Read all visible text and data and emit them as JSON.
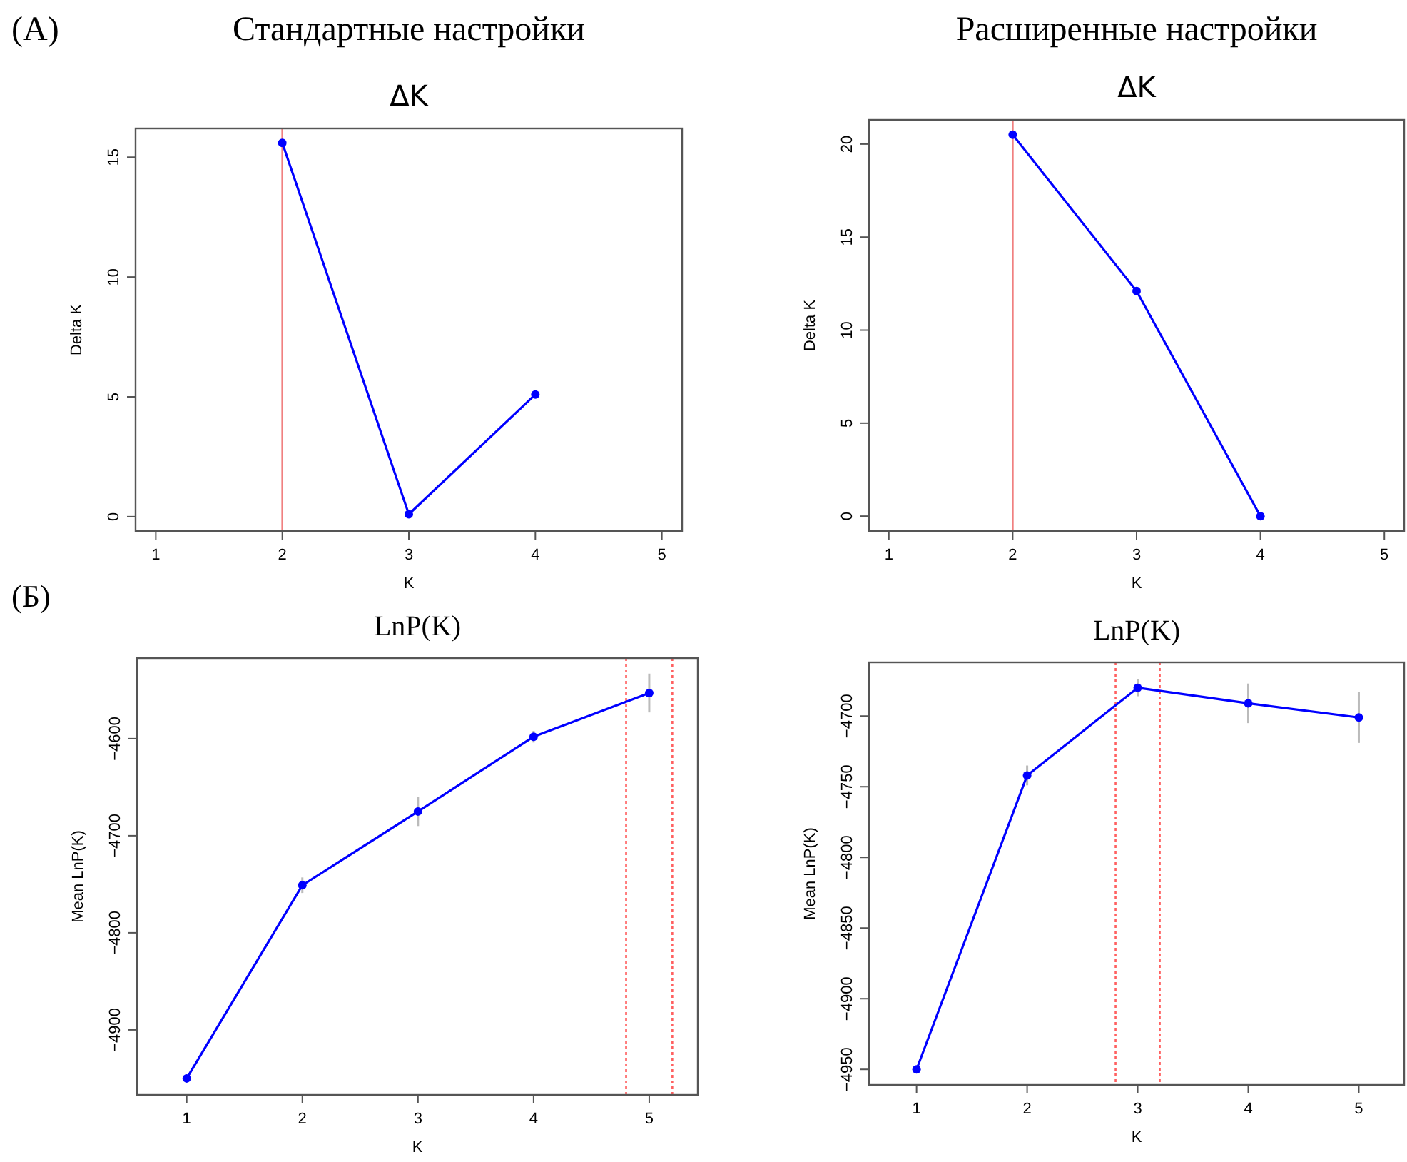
{
  "chart_data": [
    {
      "type": "line",
      "title": "ΔK",
      "annotations": [
        "(А)",
        "Стандартные настройки"
      ],
      "xlabel": "K",
      "ylabel": "Delta K",
      "x": [
        2,
        3,
        4
      ],
      "values": [
        15.6,
        0.1,
        5.1
      ],
      "color": "#0000ff",
      "marker": "circle",
      "xlim": [
        0.84,
        5.16
      ],
      "xticks": [
        1,
        2,
        3,
        4,
        5
      ],
      "ylim": [
        -0.6,
        16.2
      ],
      "yticks": [
        0,
        5,
        10,
        15
      ],
      "ref_lines": [
        {
          "axis": "x",
          "value": 2,
          "color": "#f08080",
          "line_style": "solid"
        }
      ]
    },
    {
      "type": "line",
      "title": "ΔK",
      "annotations": [
        "Расширенные настройки"
      ],
      "xlabel": "K",
      "ylabel": "Delta K",
      "x": [
        2,
        3,
        4
      ],
      "values": [
        20.5,
        12.1,
        0
      ],
      "color": "#0000ff",
      "marker": "circle",
      "xlim": [
        0.84,
        5.16
      ],
      "xticks": [
        1,
        2,
        3,
        4,
        5
      ],
      "ylim": [
        -0.8,
        21.3
      ],
      "yticks": [
        0,
        5,
        10,
        15,
        20
      ],
      "ref_lines": [
        {
          "axis": "x",
          "value": 2,
          "color": "#f08080",
          "line_style": "solid"
        }
      ]
    },
    {
      "type": "line",
      "title": "LnP(K)",
      "annotations": [
        "(Б)"
      ],
      "xlabel": "K",
      "ylabel": "Mean LnP(K)",
      "x": [
        1,
        2,
        3,
        4,
        5
      ],
      "values": [
        -4950,
        -4751,
        -4675,
        -4598,
        -4553
      ],
      "errors": [
        null,
        8,
        15,
        6,
        20
      ],
      "color": "#0000ff",
      "marker": "circle",
      "xlim": [
        0.57,
        5.42
      ],
      "xticks": [
        1,
        2,
        3,
        4,
        5
      ],
      "ylim": [
        -4967,
        -4517
      ],
      "yticks": [
        -4900,
        -4800,
        -4700,
        -4600
      ],
      "ref_lines": [
        {
          "axis": "x",
          "value": 4.8,
          "color": "#ff6060",
          "line_style": "dotted"
        },
        {
          "axis": "x",
          "value": 5.2,
          "color": "#ff6060",
          "line_style": "dotted"
        }
      ]
    },
    {
      "type": "line",
      "title": "LnP(K)",
      "xlabel": "K",
      "ylabel": "Mean LnP(K)",
      "x": [
        1,
        2,
        3,
        4,
        5
      ],
      "values": [
        -4950,
        -4742,
        -4680,
        -4691,
        -4701
      ],
      "errors": [
        null,
        7,
        6,
        14,
        18
      ],
      "color": "#0000ff",
      "marker": "circle",
      "xlim": [
        0.57,
        5.41
      ],
      "xticks": [
        1,
        2,
        3,
        4,
        5
      ],
      "ylim": [
        -4961,
        -4662
      ],
      "yticks": [
        -4950,
        -4900,
        -4850,
        -4800,
        -4750,
        -4700
      ],
      "ref_lines": [
        {
          "axis": "x",
          "value": 2.8,
          "color": "#ff6060",
          "line_style": "dotted"
        },
        {
          "axis": "x",
          "value": 3.2,
          "color": "#ff6060",
          "line_style": "dotted"
        }
      ]
    }
  ]
}
